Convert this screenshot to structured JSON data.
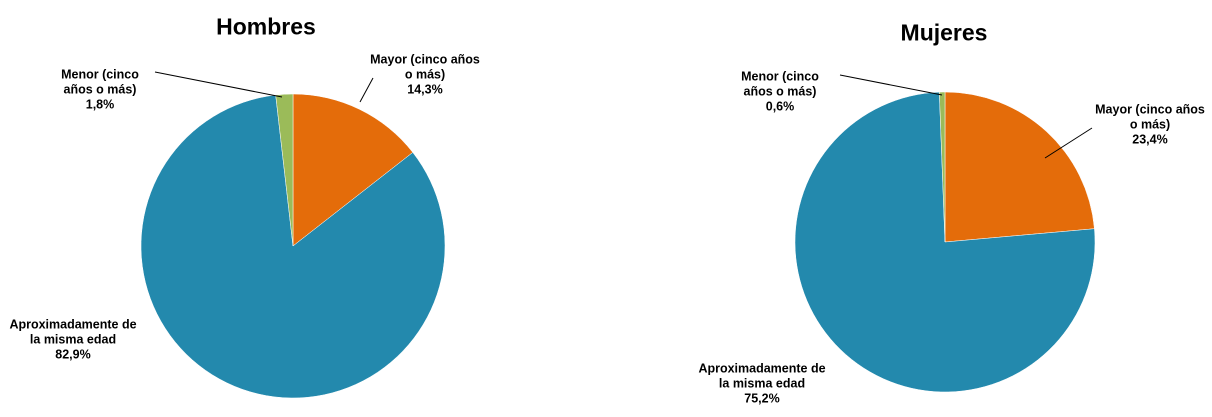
{
  "chart_data": [
    {
      "type": "pie",
      "title": "Hombres",
      "categories": [
        "Mayor (cinco años o más)",
        "Aproximadamente de la misma edad",
        "Menor (cinco años o más)"
      ],
      "values": [
        14.3,
        82.9,
        1.8
      ],
      "value_labels": [
        "14,3%",
        "82,9%",
        "1,8%"
      ],
      "colors": [
        "#e46c0a",
        "#2389ad",
        "#9bbb59"
      ]
    },
    {
      "type": "pie",
      "title": "Mujeres",
      "categories": [
        "Mayor (cinco años o más)",
        "Aproximadamente de la misma edad",
        "Menor (cinco años o más)"
      ],
      "values": [
        23.4,
        75.2,
        0.6
      ],
      "value_labels": [
        "23,4%",
        "75,2%",
        "0,6%"
      ],
      "colors": [
        "#e46c0a",
        "#2389ad",
        "#9bbb59"
      ]
    }
  ]
}
